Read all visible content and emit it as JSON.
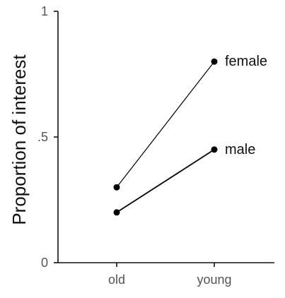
{
  "chart_data": {
    "type": "line",
    "categories": [
      "old",
      "young"
    ],
    "series": [
      {
        "name": "female",
        "values": [
          0.3,
          0.8
        ]
      },
      {
        "name": "male",
        "values": [
          0.2,
          0.45
        ]
      }
    ],
    "ylabel": "Proportion of interest",
    "xlabel": "",
    "ylim": [
      0,
      1
    ],
    "yticks": [
      0,
      0.5,
      1
    ],
    "ytick_labels": [
      "0",
      ".5",
      "1"
    ],
    "grid": false,
    "legend": "direct labels at line ends",
    "colors": {
      "line": "#000000",
      "axis": "#111111",
      "tick_text": "#555555"
    }
  }
}
